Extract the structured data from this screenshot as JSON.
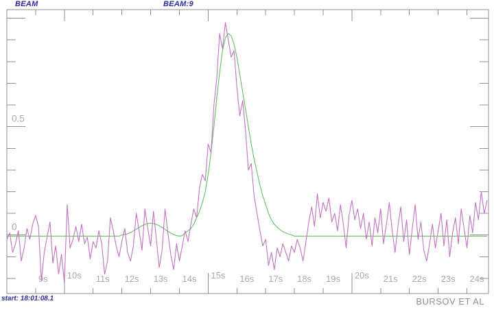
{
  "header": {
    "title_left": "BEAM"
  },
  "footer": {
    "start_label": "start: 18:01:08.1",
    "attribution": "BURSOV ET AL"
  },
  "colors": {
    "background": "#ffffff",
    "frame": "#8f8f8f",
    "tick_label": "#a8a8a8",
    "header_text": "#2b2b9e",
    "raw_trace": "#c173c1",
    "fit_trace": "#63c063"
  },
  "chart_data": {
    "type": "line",
    "title": "BEAM:9",
    "xlabel": "",
    "ylabel": "",
    "grid": false,
    "legend": "none",
    "xlim": [
      8.0,
      24.75
    ],
    "ylim": [
      -0.27,
      1.04
    ],
    "x_start": 8.0,
    "x_step": 0.1,
    "x_ticks": [
      {
        "value": 9,
        "label": "9s"
      },
      {
        "value": 10,
        "label": "10s"
      },
      {
        "value": 11,
        "label": "11s"
      },
      {
        "value": 12,
        "label": "12s"
      },
      {
        "value": 13,
        "label": "13s"
      },
      {
        "value": 14,
        "label": "14s"
      },
      {
        "value": 15,
        "label": "15s"
      },
      {
        "value": 16,
        "label": "16s"
      },
      {
        "value": 17,
        "label": "17s"
      },
      {
        "value": 18,
        "label": "18s"
      },
      {
        "value": 19,
        "label": "19s"
      },
      {
        "value": 20,
        "label": "20s"
      },
      {
        "value": 21,
        "label": "21s"
      },
      {
        "value": 22,
        "label": "22s"
      },
      {
        "value": 23,
        "label": "23s"
      },
      {
        "value": 24,
        "label": "24s"
      }
    ],
    "x_major_ticks": [
      10,
      15,
      20
    ],
    "y_major_ticks": [
      {
        "value": 0,
        "label": "0"
      },
      {
        "value": 0.5,
        "label": "0.5"
      },
      {
        "value": 1.0,
        "label": ""
      }
    ],
    "y_minor_ticks": [
      -0.2,
      -0.1,
      0.1,
      0.2,
      0.3,
      0.4,
      0.6,
      0.7,
      0.8,
      0.9
    ],
    "series": [
      {
        "name": "gaussian-fit-trace",
        "color": "#63c063",
        "values": [
          -0.005,
          -0.005,
          -0.005,
          -0.005,
          -0.005,
          -0.005,
          -0.005,
          -0.005,
          -0.005,
          -0.005,
          -0.005,
          -0.005,
          -0.005,
          -0.005,
          -0.005,
          -0.005,
          -0.005,
          -0.005,
          -0.005,
          -0.005,
          -0.005,
          -0.005,
          -0.005,
          -0.005,
          -0.005,
          -0.005,
          -0.005,
          -0.005,
          -0.005,
          -0.005,
          -0.005,
          -0.005,
          -0.005,
          -0.005,
          -0.005,
          -0.005,
          -0.005,
          -0.005,
          -0.005,
          -0.005,
          0.0,
          0.002,
          0.006,
          0.012,
          0.019,
          0.027,
          0.035,
          0.043,
          0.049,
          0.053,
          0.055,
          0.053,
          0.049,
          0.043,
          0.035,
          0.026,
          0.017,
          0.009,
          0.002,
          -0.003,
          -0.005,
          -0.003,
          0.01,
          0.02,
          0.03,
          0.05,
          0.08,
          0.11,
          0.15,
          0.2,
          0.28,
          0.38,
          0.5,
          0.63,
          0.75,
          0.85,
          0.91,
          0.93,
          0.92,
          0.88,
          0.82,
          0.74,
          0.66,
          0.58,
          0.5,
          0.42,
          0.35,
          0.29,
          0.23,
          0.18,
          0.14,
          0.1,
          0.07,
          0.05,
          0.035,
          0.025,
          0.015,
          0.01,
          0.005,
          0.0,
          -0.005,
          -0.005,
          -0.005,
          -0.005,
          -0.005,
          -0.005,
          -0.005,
          -0.005,
          -0.005,
          -0.005,
          -0.005,
          -0.005,
          -0.005,
          -0.005,
          -0.005,
          -0.005,
          -0.005,
          -0.005,
          -0.005,
          -0.005,
          -0.005,
          -0.005,
          -0.005,
          -0.005,
          -0.005,
          -0.005,
          -0.005,
          -0.005,
          -0.005,
          -0.005,
          -0.005,
          -0.005,
          -0.005,
          -0.005,
          -0.005,
          -0.005,
          -0.005,
          -0.005,
          -0.005,
          -0.005,
          -0.005,
          -0.005,
          -0.005,
          -0.005,
          -0.005,
          -0.005,
          -0.005,
          -0.005,
          -0.005,
          -0.005,
          -0.005,
          -0.005,
          -0.005,
          -0.005,
          -0.005,
          -0.005,
          -0.005,
          -0.005,
          -0.005,
          -0.005,
          -0.005,
          -0.005,
          -0.005,
          -0.005,
          -0.005,
          -0.005,
          -0.005,
          -0.005
        ]
      },
      {
        "name": "beam-signal-trace",
        "color": "#c173c1",
        "values": [
          -0.02,
          0.01,
          -0.08,
          -0.04,
          0.02,
          -0.12,
          -0.06,
          0.03,
          -0.02,
          0.05,
          0.09,
          0.04,
          -0.21,
          -0.08,
          -0.01,
          0.06,
          -0.13,
          -0.05,
          -0.18,
          -0.09,
          -0.22,
          0.14,
          -0.06,
          -0.02,
          0.04,
          -0.03,
          0.05,
          -0.04,
          -0.01,
          -0.11,
          -0.03,
          -0.06,
          0.02,
          -0.04,
          -0.18,
          -0.12,
          0.08,
          0.02,
          -0.05,
          -0.1,
          -0.03,
          0.03,
          -0.08,
          -0.12,
          -0.05,
          0.1,
          0.02,
          -0.07,
          0.12,
          0.03,
          -0.05,
          0.11,
          -0.02,
          -0.15,
          -0.07,
          0.12,
          0.01,
          -0.09,
          -0.16,
          -0.04,
          -0.12,
          -0.05,
          0.02,
          -0.03,
          0.05,
          0.12,
          0.08,
          0.22,
          0.28,
          0.25,
          0.42,
          0.38,
          0.6,
          0.72,
          0.93,
          0.86,
          0.98,
          0.9,
          0.82,
          0.85,
          0.68,
          0.55,
          0.62,
          0.48,
          0.3,
          0.33,
          0.18,
          0.1,
          0.02,
          -0.05,
          -0.02,
          -0.14,
          -0.08,
          -0.16,
          -0.06,
          -0.1,
          -0.04,
          -0.08,
          -0.12,
          -0.05,
          -0.08,
          -0.02,
          -0.06,
          -0.12,
          -0.03,
          0.06,
          0.13,
          0.04,
          0.19,
          0.08,
          0.15,
          0.11,
          0.17,
          0.06,
          0.1,
          0.02,
          0.14,
          0.05,
          -0.06,
          0.09,
          0.16,
          0.07,
          0.12,
          0.03,
          0.1,
          -0.02,
          0.06,
          -0.05,
          0.08,
          0.01,
          0.12,
          -0.04,
          0.05,
          0.15,
          0.02,
          -0.08,
          0.04,
          0.13,
          -0.03,
          0.07,
          -0.09,
          0.03,
          0.14,
          -0.02,
          0.06,
          -0.07,
          -0.12,
          -0.04,
          0.05,
          -0.06,
          0.02,
          0.1,
          -0.05,
          0.07,
          -0.1,
          0.01,
          0.08,
          -0.04,
          0.12,
          0.03,
          -0.06,
          0.09,
          0.01,
          0.15,
          0.07,
          0.2,
          0.1,
          0.16
        ]
      }
    ]
  }
}
